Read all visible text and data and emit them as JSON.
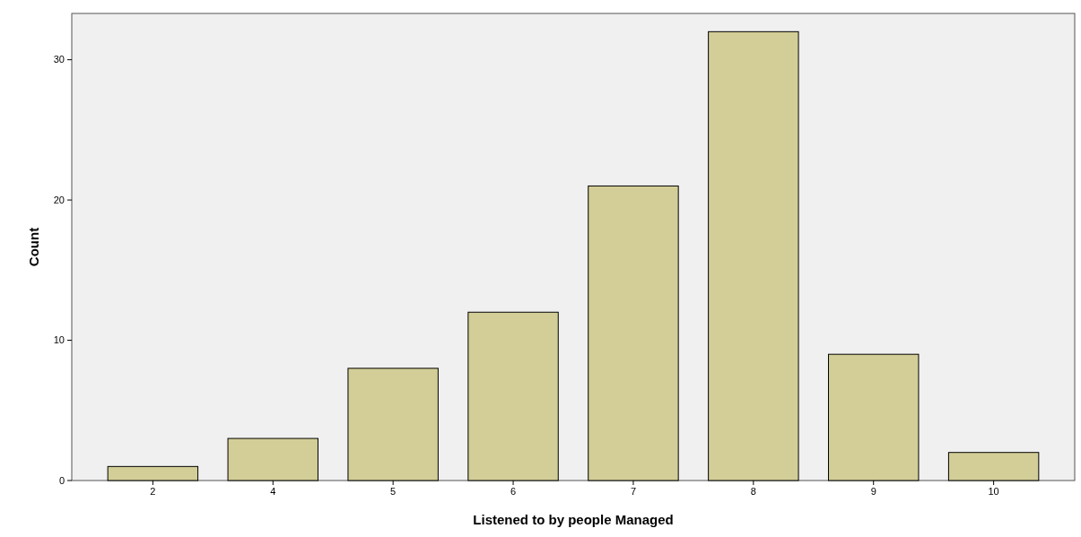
{
  "chart_data": {
    "type": "bar",
    "xlabel": "Listened to by people Managed",
    "ylabel": "Count",
    "categories": [
      "2",
      "4",
      "5",
      "6",
      "7",
      "8",
      "9",
      "10"
    ],
    "values": [
      1,
      3,
      8,
      12,
      21,
      32,
      9,
      2
    ],
    "color": "#d3ce97",
    "ylim": [
      0,
      33.3
    ],
    "yticks": [
      0,
      10,
      20,
      30
    ],
    "grid": false
  }
}
